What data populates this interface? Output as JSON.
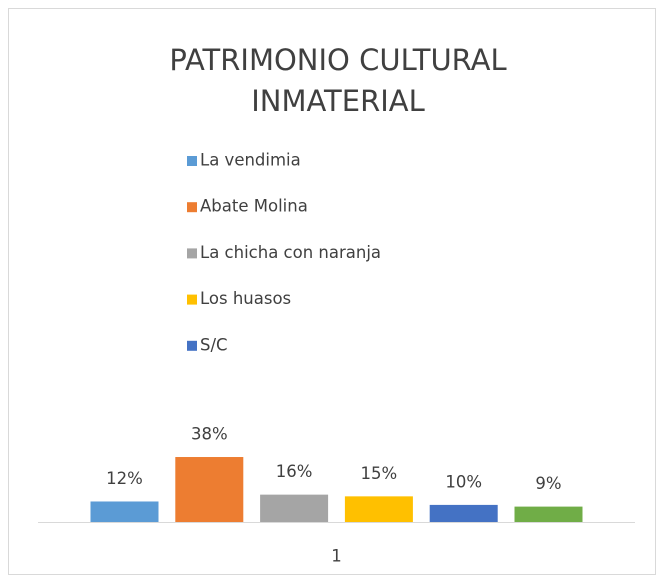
{
  "chart_data": {
    "type": "bar",
    "title": [
      "PATRIMONIO CULTURAL",
      "INMATERIAL"
    ],
    "categories": [
      "1"
    ],
    "series": [
      {
        "name": "La vendimia",
        "color": "#5b9bd5",
        "values": [
          12
        ],
        "value_labels": [
          "12%"
        ]
      },
      {
        "name": "Abate Molina",
        "color": "#ed7d31",
        "values": [
          38
        ],
        "value_labels": [
          "38%"
        ]
      },
      {
        "name": "La chicha con naranja",
        "color": "#a5a5a5",
        "values": [
          16
        ],
        "value_labels": [
          "16%"
        ]
      },
      {
        "name": "Los huasos",
        "color": "#ffc000",
        "values": [
          15
        ],
        "value_labels": [
          "15%"
        ]
      },
      {
        "name": "S/C",
        "color": "#4472c4",
        "values": [
          10
        ],
        "value_labels": [
          "10%"
        ]
      },
      {
        "color": "#70ad47",
        "values": [
          9
        ],
        "value_labels": [
          "9%"
        ]
      }
    ],
    "legend": "top"
  }
}
